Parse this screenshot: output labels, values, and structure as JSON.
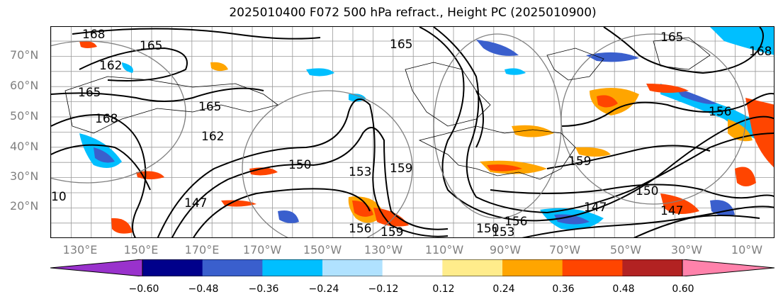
{
  "title": "2025010400 F072 500 hPa refract., Height PC (2025010900)",
  "lat_labels": [
    "70°N",
    "60°N",
    "50°N",
    "40°N",
    "30°N",
    "20°N"
  ],
  "lon_labels": [
    "130°E",
    "150°E",
    "170°E",
    "170°W",
    "150°W",
    "130°W",
    "110°W",
    "90°W",
    "70°W",
    "50°W",
    "30°W",
    "10°W"
  ],
  "contour_labels": [
    "168",
    "165",
    "162",
    "165",
    "168",
    "165",
    "162",
    "150",
    "147",
    "153",
    "156",
    "159",
    "165",
    "159",
    "156",
    "150",
    "147",
    "153",
    "156",
    "159",
    "168",
    "165",
    "150",
    "147",
    "10"
  ],
  "colorbar": {
    "colors": [
      "#9932CC",
      "#00008B",
      "#3A5FCD",
      "#00BFFF",
      "#B0E2FF",
      "#FFFFFF",
      "#FFEC8B",
      "#FFA500",
      "#FF4500",
      "#B22222",
      "#FF82AB"
    ],
    "tick_labels": [
      "−0.60",
      "−0.48",
      "−0.36",
      "−0.24",
      "−0.12",
      "0.12",
      "0.24",
      "0.36",
      "0.48",
      "0.60"
    ]
  }
}
